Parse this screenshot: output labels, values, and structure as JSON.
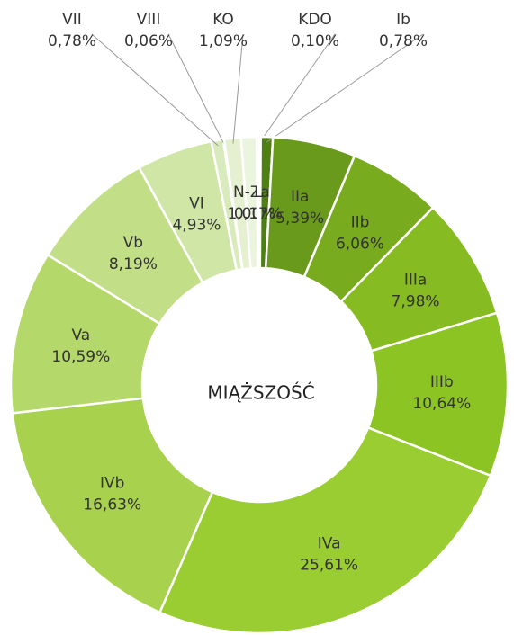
{
  "chart_data": {
    "type": "donut",
    "title": "MIĄŻSZOŚĆ",
    "categories": [
      "KDO",
      "Ib",
      "IIa",
      "IIb",
      "IIIa",
      "IIIb",
      "IVa",
      "IVb",
      "Va",
      "Vb",
      "VI",
      "VII",
      "VIII",
      "KO",
      "N-Za",
      "L"
    ],
    "values": [
      0.1,
      0.78,
      5.39,
      6.06,
      7.98,
      10.64,
      25.61,
      16.63,
      10.59,
      8.19,
      4.93,
      0.78,
      0.06,
      1.09,
      1.0,
      0.17
    ],
    "value_labels": [
      "0,10%",
      "0,78%",
      "5,39%",
      "6,06%",
      "7,98%",
      "10,64%",
      "25,61%",
      "16,63%",
      "10,59%",
      "8,19%",
      "4,93%",
      "0,78%",
      "0,06%",
      "1,09%",
      "1,00%",
      "0,17%"
    ],
    "colors": [
      "#3f6e10",
      "#4d7f12",
      "#6a9a1c",
      "#78ab1e",
      "#86bc22",
      "#8cc424",
      "#9acd32",
      "#a8d24e",
      "#b5d86a",
      "#c2df88",
      "#cfe6a6",
      "#d9ebbd",
      "#dfeec6",
      "#e4f0cf",
      "#ebf4dc",
      "#f1f7e8"
    ]
  }
}
